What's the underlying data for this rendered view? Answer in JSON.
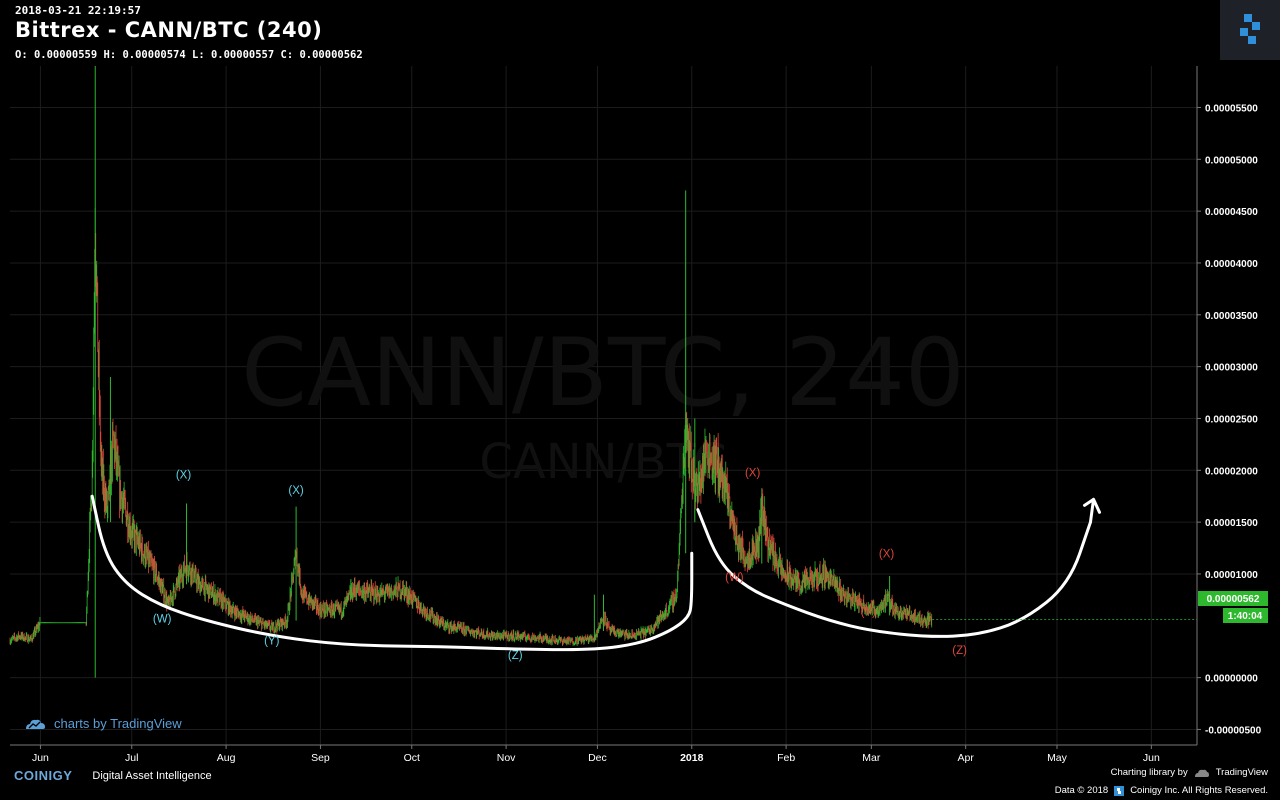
{
  "header": {
    "timestamp": "2018-03-21 22:19:57",
    "title": "Bittrex - CANN/BTC (240)",
    "ohlc": "O: 0.00000559 H: 0.00000574 L: 0.00000557 C: 0.00000562"
  },
  "watermark": {
    "main": "CANN/BTC, 240",
    "sub": "CANN/BTC"
  },
  "price_tag": {
    "value": "0.00000562",
    "countdown": "1:40:04"
  },
  "footer": {
    "tv_link": "charts by TradingView",
    "brand": "COINIGY",
    "tagline": "Digital Asset Intelligence",
    "charting_library": "Charting library by",
    "tradingview": "TradingView",
    "data_credit_a": "Data © 2018",
    "data_credit_b": "Coinigy Inc. All Rights Reserved."
  },
  "colors": {
    "up": "#2eb82e",
    "down": "#e0453a",
    "wave_cyan": "#5fd4e8",
    "wave_red": "#e0453a",
    "price_tag": "#2eb82e",
    "background": "#000000"
  },
  "chart_data": {
    "type": "candlestick",
    "x_tick_labels": [
      "Jun",
      "Jul",
      "Aug",
      "Sep",
      "Oct",
      "Nov",
      "Dec",
      "2018",
      "Feb",
      "Mar",
      "Apr",
      "May",
      "Jun"
    ],
    "y_tick_labels": [
      "0.00005500",
      "0.00005000",
      "0.00004500",
      "0.00004000",
      "0.00003500",
      "0.00003000",
      "0.00002500",
      "0.00002000",
      "0.00001500",
      "0.00001000",
      "0.00000562",
      "0.00000000",
      "-0.00000500"
    ],
    "ylim": [
      -6.5e-06,
      5.9e-05
    ],
    "xlim": [
      "2017-05-22",
      "2018-06-16"
    ],
    "grid": true,
    "last_close": 5.62e-06,
    "price_path": [
      [
        "2017-05-22",
        3.6e-06
      ],
      [
        "2017-05-25",
        4e-06
      ],
      [
        "2017-05-29",
        3.7e-06
      ],
      [
        "2017-06-01",
        5.3e-06
      ],
      [
        "2017-06-16",
        5.3e-06
      ],
      [
        "2017-06-18",
        2e-05
      ],
      [
        "2017-06-19",
        4.5e-05
      ],
      [
        "2017-06-20",
        3e-05
      ],
      [
        "2017-06-21",
        2e-05
      ],
      [
        "2017-06-23",
        1.6e-05
      ],
      [
        "2017-06-25",
        2.3e-05
      ],
      [
        "2017-06-27",
        1.8e-05
      ],
      [
        "2017-07-01",
        1.4e-05
      ],
      [
        "2017-07-05",
        1.2e-05
      ],
      [
        "2017-07-09",
        1e-05
      ],
      [
        "2017-07-13",
        7e-06
      ],
      [
        "2017-07-16",
        9e-06
      ],
      [
        "2017-07-19",
        1.1e-05
      ],
      [
        "2017-07-23",
        9e-06
      ],
      [
        "2017-07-28",
        8e-06
      ],
      [
        "2017-08-03",
        6.5e-06
      ],
      [
        "2017-08-10",
        5.5e-06
      ],
      [
        "2017-08-16",
        4.8e-06
      ],
      [
        "2017-08-21",
        5.5e-06
      ],
      [
        "2017-08-24",
        1.2e-05
      ],
      [
        "2017-08-26",
        8e-06
      ],
      [
        "2017-09-01",
        6.5e-06
      ],
      [
        "2017-09-08",
        6.5e-06
      ],
      [
        "2017-09-12",
        8.5e-06
      ],
      [
        "2017-09-20",
        8e-06
      ],
      [
        "2017-09-28",
        8.5e-06
      ],
      [
        "2017-10-05",
        6.5e-06
      ],
      [
        "2017-10-12",
        5e-06
      ],
      [
        "2017-10-20",
        4.5e-06
      ],
      [
        "2017-10-28",
        4e-06
      ],
      [
        "2017-11-05",
        4e-06
      ],
      [
        "2017-11-12",
        3.8e-06
      ],
      [
        "2017-11-22",
        3.5e-06
      ],
      [
        "2017-11-30",
        3.8e-06
      ],
      [
        "2017-12-03",
        6e-06
      ],
      [
        "2017-12-05",
        4.5e-06
      ],
      [
        "2017-12-12",
        4e-06
      ],
      [
        "2017-12-18",
        4.5e-06
      ],
      [
        "2017-12-24",
        6.5e-06
      ],
      [
        "2017-12-27",
        8e-06
      ],
      [
        "2017-12-28",
        1.3e-05
      ],
      [
        "2017-12-30",
        2.5e-05
      ],
      [
        "2018-01-01",
        2e-05
      ],
      [
        "2018-01-03",
        1.8e-05
      ],
      [
        "2018-01-06",
        2.2e-05
      ],
      [
        "2018-01-10",
        2e-05
      ],
      [
        "2018-01-13",
        1.7e-05
      ],
      [
        "2018-01-16",
        1.3e-05
      ],
      [
        "2018-01-19",
        1.15e-05
      ],
      [
        "2018-01-23",
        1.3e-05
      ],
      [
        "2018-01-24",
        1.7e-05
      ],
      [
        "2018-01-26",
        1.3e-05
      ],
      [
        "2018-01-31",
        1e-05
      ],
      [
        "2018-02-06",
        9e-06
      ],
      [
        "2018-02-14",
        1e-05
      ],
      [
        "2018-02-20",
        8e-06
      ],
      [
        "2018-02-26",
        7e-06
      ],
      [
        "2018-03-03",
        6.5e-06
      ],
      [
        "2018-03-06",
        7.5e-06
      ],
      [
        "2018-03-09",
        6.5e-06
      ],
      [
        "2018-03-14",
        6e-06
      ],
      [
        "2018-03-18",
        5.5e-06
      ],
      [
        "2018-03-21",
        5.6e-06
      ]
    ],
    "spikes": [
      [
        "2017-06-19",
        5.9e-05,
        0
      ],
      [
        "2017-06-24",
        2.9e-05,
        1.5e-05
      ],
      [
        "2017-07-19",
        1.68e-05,
        9e-06
      ],
      [
        "2017-08-24",
        1.65e-05,
        5.5e-06
      ],
      [
        "2017-09-11",
        9.5e-06,
        7.5e-06
      ],
      [
        "2017-11-30",
        8e-06,
        3.5e-06
      ],
      [
        "2017-12-03",
        8e-06,
        4.5e-06
      ],
      [
        "2017-12-30",
        4.7e-05,
        1.2e-05
      ],
      [
        "2018-01-02",
        2.5e-05,
        1.5e-05
      ],
      [
        "2018-01-24",
        1.75e-05,
        1.1e-05
      ],
      [
        "2018-03-07",
        9.8e-06,
        6e-06
      ]
    ],
    "wave_labels": [
      {
        "text": "(X)",
        "date": "2017-07-18",
        "price": 1.92e-05,
        "color": "cyan"
      },
      {
        "text": "(X)",
        "date": "2017-08-24",
        "price": 1.77e-05,
        "color": "cyan"
      },
      {
        "text": "(W)",
        "date": "2017-07-11",
        "price": 5.3e-06,
        "color": "cyan"
      },
      {
        "text": "(Y)",
        "date": "2017-08-16",
        "price": 3.2e-06,
        "color": "cyan"
      },
      {
        "text": "(Z)",
        "date": "2017-11-04",
        "price": 1.8e-06,
        "color": "cyan"
      },
      {
        "text": "(X)",
        "date": "2018-01-21",
        "price": 1.94e-05,
        "color": "red"
      },
      {
        "text": "(W)",
        "date": "2018-01-15",
        "price": 9.3e-06,
        "color": "red"
      },
      {
        "text": "(X)",
        "date": "2018-03-06",
        "price": 1.16e-05,
        "color": "red"
      },
      {
        "text": "(Y)",
        "date": "2018-02-28",
        "price": 6e-06,
        "color": "red"
      },
      {
        "text": "(Z)",
        "date": "2018-03-30",
        "price": 2.3e-06,
        "color": "red"
      }
    ],
    "projection_path": [
      [
        "2017-06-18",
        1.75e-05
      ],
      [
        "2017-06-22",
        1.2e-05
      ],
      [
        "2017-06-29",
        9e-06
      ],
      [
        "2017-07-10",
        7e-06
      ],
      [
        "2017-07-25",
        5.5e-06
      ],
      [
        "2017-08-16",
        4e-06
      ],
      [
        "2017-09-10",
        3.1e-06
      ],
      [
        "2017-10-10",
        3e-06
      ],
      [
        "2017-11-10",
        2.7e-06
      ],
      [
        "2017-12-01",
        2.7e-06
      ],
      [
        "2017-12-15",
        3.3e-06
      ],
      [
        "2017-12-25",
        4.5e-06
      ],
      [
        "2017-12-31",
        5.8e-06
      ],
      [
        "2018-01-01",
        7.2e-06
      ],
      [
        "2018-01-01",
        1.2e-05
      ]
    ],
    "projection_path_2": [
      [
        "2018-01-03",
        1.62e-05
      ],
      [
        "2018-01-10",
        1.1e-05
      ],
      [
        "2018-01-20",
        8.5e-06
      ],
      [
        "2018-02-01",
        7e-06
      ],
      [
        "2018-02-15",
        5.5e-06
      ],
      [
        "2018-03-01",
        4.5e-06
      ],
      [
        "2018-03-20",
        3.9e-06
      ],
      [
        "2018-04-05",
        4.1e-06
      ],
      [
        "2018-04-20",
        5.5e-06
      ],
      [
        "2018-05-05",
        9e-06
      ],
      [
        "2018-05-12",
        1.5e-05
      ]
    ],
    "projection_arrow": [
      "2018-05-13",
      1.72e-05
    ]
  }
}
